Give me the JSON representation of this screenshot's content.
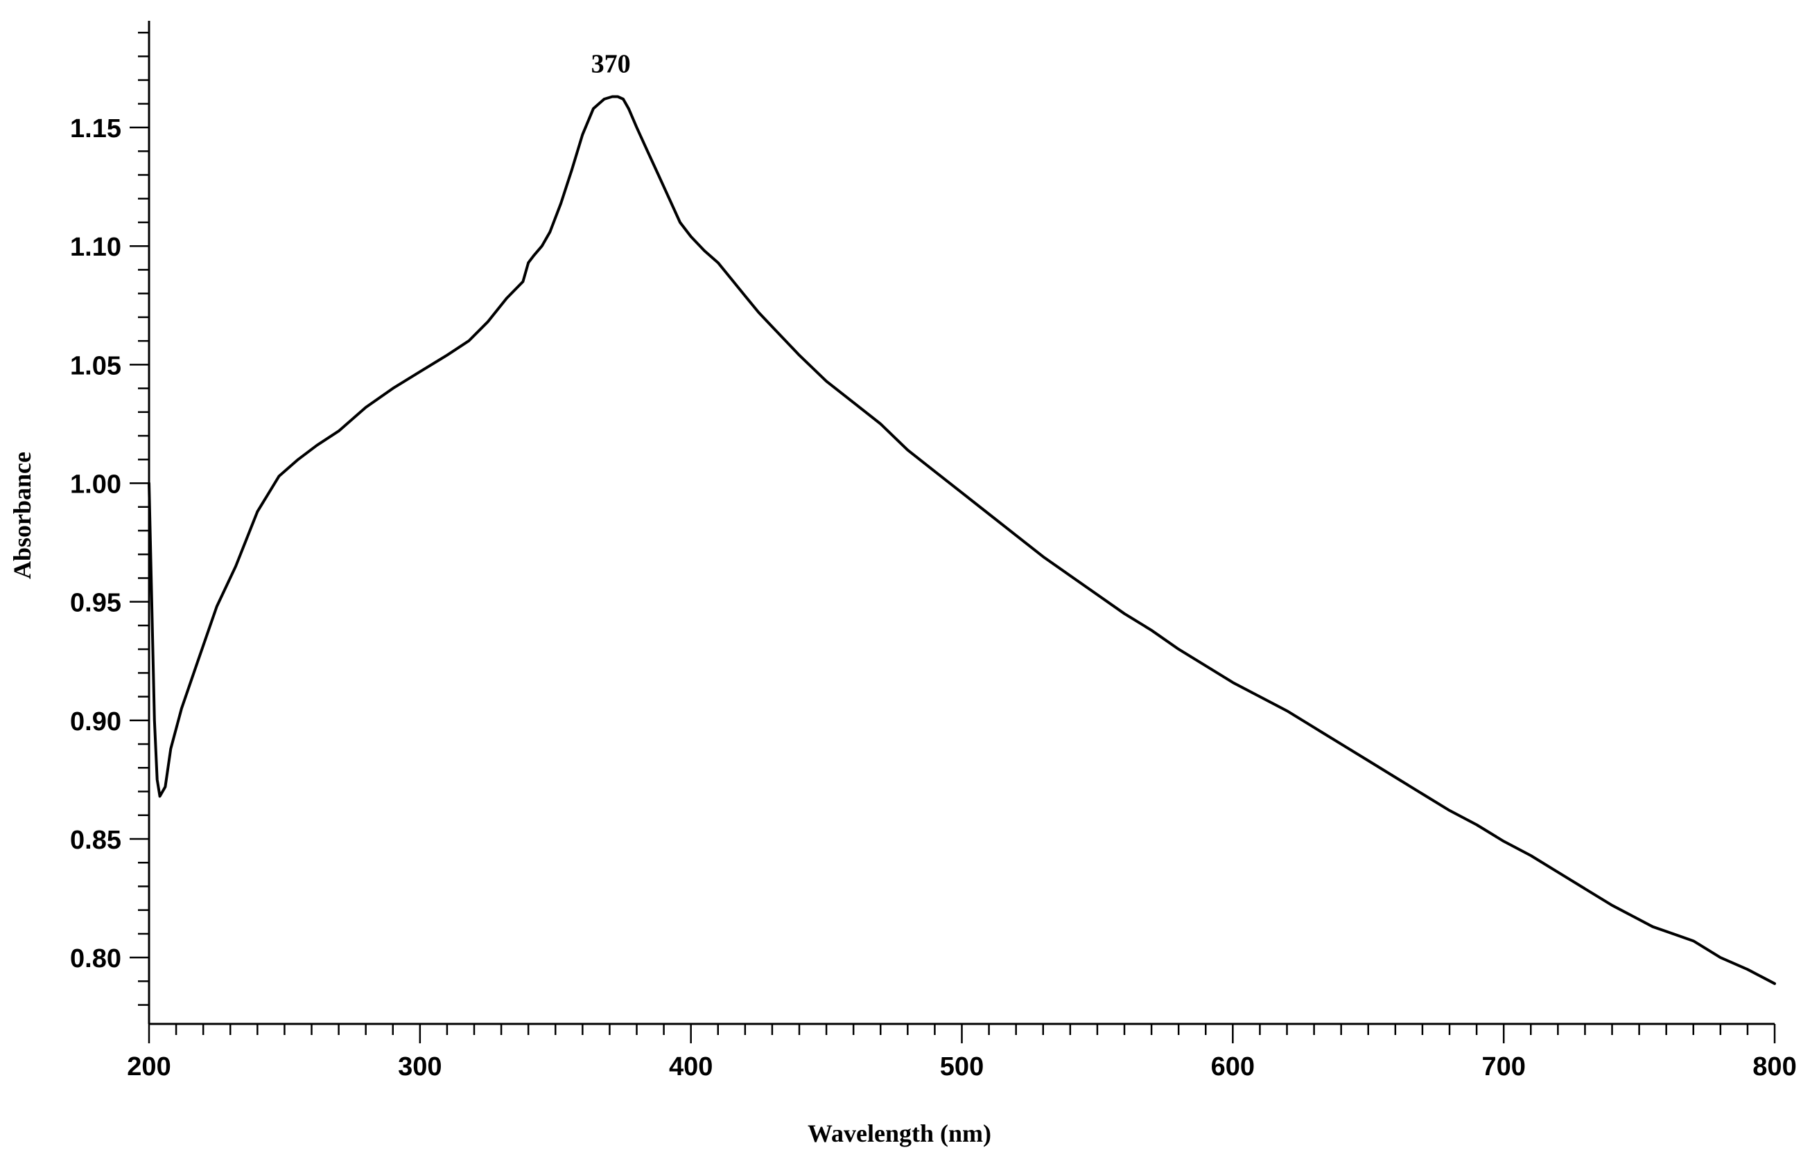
{
  "chart_data": {
    "type": "line",
    "xlabel": "Wavelength (nm)",
    "ylabel": "Absorbance",
    "xlim": [
      200,
      800
    ],
    "ylim": [
      0.772,
      1.195
    ],
    "x_ticks": [
      200,
      300,
      400,
      500,
      600,
      700,
      800
    ],
    "x_tick_labels": [
      "200",
      "300",
      "400",
      "500",
      "600",
      "700",
      "800"
    ],
    "y_ticks": [
      0.8,
      0.85,
      0.9,
      0.95,
      1.0,
      1.05,
      1.1,
      1.15
    ],
    "y_tick_labels": [
      "0.80",
      "0.85",
      "0.90",
      "0.95",
      "1.00",
      "1.05",
      "1.10",
      "1.15"
    ],
    "grid": false,
    "legend": "none",
    "annotations": [
      {
        "text": "370",
        "x": 373,
        "y": 1.163
      }
    ],
    "series": [
      {
        "color": "#000000",
        "x": [
          200,
          201,
          202,
          203,
          204,
          206,
          208,
          212,
          218,
          225,
          232,
          240,
          248,
          255,
          262,
          270,
          280,
          290,
          300,
          310,
          318,
          325,
          332,
          338,
          340,
          342,
          345,
          348,
          352,
          356,
          360,
          364,
          368,
          371,
          373,
          375,
          377,
          380,
          384,
          388,
          392,
          396,
          400,
          405,
          410,
          415,
          420,
          425,
          430,
          440,
          450,
          460,
          470,
          480,
          490,
          500,
          510,
          520,
          530,
          540,
          550,
          560,
          570,
          580,
          590,
          600,
          610,
          620,
          630,
          640,
          650,
          660,
          670,
          680,
          690,
          700,
          710,
          720,
          730,
          740,
          750,
          755,
          760,
          770,
          780,
          790,
          800
        ],
        "y": [
          1.0,
          0.95,
          0.9,
          0.875,
          0.868,
          0.872,
          0.888,
          0.905,
          0.925,
          0.948,
          0.965,
          0.988,
          1.003,
          1.01,
          1.016,
          1.022,
          1.032,
          1.04,
          1.047,
          1.054,
          1.06,
          1.068,
          1.078,
          1.085,
          1.093,
          1.096,
          1.1,
          1.106,
          1.118,
          1.132,
          1.147,
          1.158,
          1.162,
          1.163,
          1.163,
          1.162,
          1.158,
          1.15,
          1.14,
          1.13,
          1.12,
          1.11,
          1.104,
          1.098,
          1.093,
          1.086,
          1.079,
          1.072,
          1.066,
          1.054,
          1.043,
          1.034,
          1.025,
          1.014,
          1.005,
          0.996,
          0.987,
          0.978,
          0.969,
          0.961,
          0.953,
          0.945,
          0.938,
          0.93,
          0.923,
          0.916,
          0.91,
          0.904,
          0.897,
          0.89,
          0.883,
          0.876,
          0.869,
          0.862,
          0.856,
          0.849,
          0.843,
          0.836,
          0.829,
          0.822,
          0.816,
          0.813,
          0.811,
          0.807,
          0.8,
          0.795,
          0.789
        ]
      }
    ]
  }
}
